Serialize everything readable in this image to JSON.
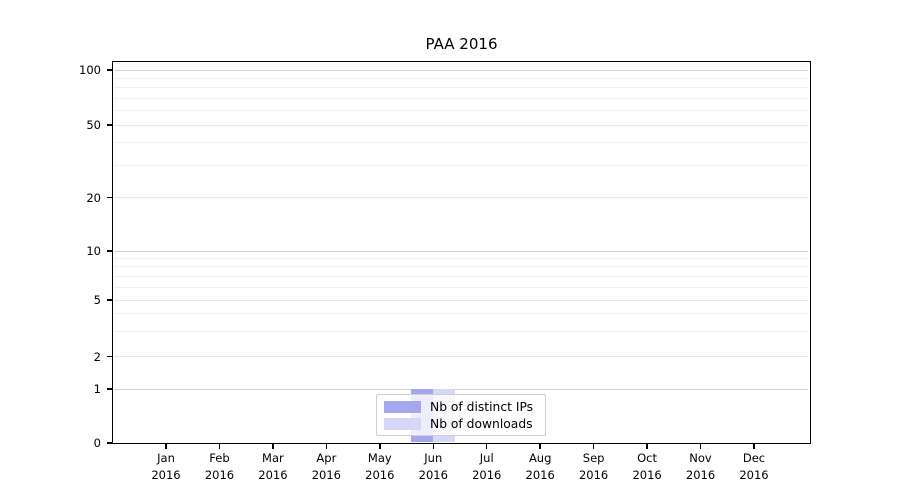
{
  "chart_data": {
    "type": "bar",
    "title": "PAA 2016",
    "categories": [
      "Jan",
      "Feb",
      "Mar",
      "Apr",
      "May",
      "Jun",
      "Jul",
      "Aug",
      "Sep",
      "Oct",
      "Nov",
      "Dec"
    ],
    "category_year": "2016",
    "series": [
      {
        "name": "Nb of distinct IPs",
        "color": "#a5a7ed",
        "values": [
          0,
          0,
          0,
          0,
          0,
          1,
          0,
          0,
          0,
          0,
          0,
          0
        ]
      },
      {
        "name": "Nb of downloads",
        "color": "#d6d7f6",
        "values": [
          0,
          0,
          0,
          0,
          0,
          1,
          0,
          0,
          0,
          0,
          0,
          0
        ]
      }
    ],
    "yticks": [
      0,
      1,
      2,
      5,
      10,
      20,
      50,
      100
    ],
    "y_minor_gridlines": [
      3,
      4,
      6,
      7,
      8,
      9,
      30,
      40,
      60,
      70,
      80,
      90
    ],
    "y_scale": "log",
    "ylim": [
      0,
      100
    ],
    "grid": "horizontal",
    "legend_position": "bottom-center"
  }
}
